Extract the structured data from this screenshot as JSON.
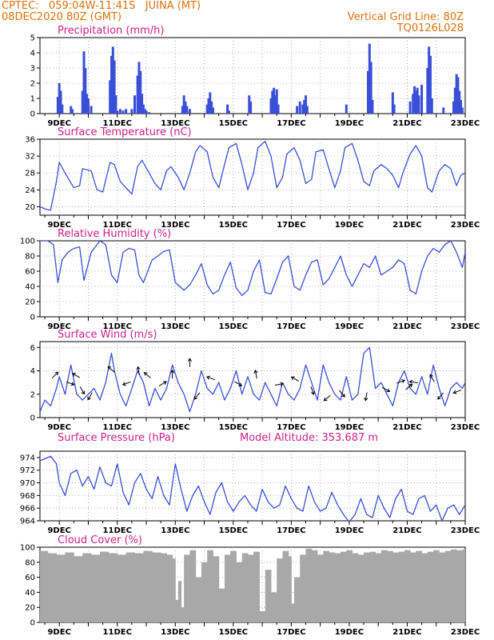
{
  "header": {
    "station_line": "CPTEC:   059:04W-11:41S   JUINA (MT)",
    "date_line": "08DEC2020 80Z (GMT)",
    "grid_line": "Vertical Grid Line: 80Z",
    "run_id": "TQ0126L028"
  },
  "colors": {
    "header": "#e07010",
    "panel_title": "#d0208a",
    "series": "#3a4fd8",
    "cloud": "#a8a8a8",
    "grid": "#9a9a9a"
  },
  "x_axis_labels": [
    "9DEC",
    "11DEC",
    "13DEC",
    "15DEC",
    "17DEC",
    "19DEC",
    "21DEC",
    "23DEC"
  ],
  "chart_data": [
    {
      "id": "precip",
      "type": "bar",
      "title": "Precipitation (mm/h)",
      "ylim": [
        0,
        5
      ],
      "yticks": [
        0,
        1,
        2,
        3,
        4,
        5
      ],
      "x_range_days": [
        8.333,
        23.0
      ],
      "x": [
        8.95,
        9.0,
        9.05,
        9.1,
        9.4,
        9.45,
        9.8,
        9.85,
        9.9,
        9.95,
        10.0,
        10.1,
        10.75,
        10.8,
        10.85,
        10.9,
        10.95,
        11.0,
        11.1,
        11.2,
        11.3,
        11.5,
        11.6,
        11.7,
        11.75,
        11.8,
        11.85,
        11.9,
        11.95,
        12.0,
        12.1,
        13.25,
        13.3,
        13.35,
        13.4,
        13.5,
        14.1,
        14.15,
        14.2,
        14.25,
        14.3,
        14.8,
        14.85,
        15.55,
        15.6,
        16.3,
        16.35,
        16.4,
        16.45,
        16.5,
        16.55,
        17.2,
        17.3,
        17.4,
        17.45,
        17.5,
        17.55,
        18.9,
        19.65,
        19.7,
        19.75,
        19.8,
        20.5,
        20.55,
        21.1,
        21.2,
        21.25,
        21.3,
        21.35,
        21.4,
        21.5,
        21.7,
        21.75,
        21.8,
        21.85,
        22.25,
        22.6,
        22.65,
        22.7,
        22.75,
        22.8,
        22.85,
        22.9
      ],
      "values": [
        1.1,
        2.0,
        1.5,
        0.6,
        0.5,
        0.3,
        1.5,
        4.1,
        3.0,
        1.3,
        1.0,
        0.5,
        2.2,
        3.8,
        4.4,
        3.5,
        1.2,
        0.2,
        0.3,
        0.2,
        0.3,
        0.3,
        1.2,
        2.5,
        3.4,
        2.8,
        1.3,
        0.6,
        0.3,
        0.2,
        0.1,
        0.5,
        1.2,
        0.8,
        0.5,
        0.3,
        0.6,
        1.0,
        1.4,
        0.8,
        0.4,
        0.6,
        0.2,
        1.2,
        0.8,
        1.0,
        1.5,
        1.7,
        1.2,
        1.6,
        0.6,
        0.5,
        0.8,
        0.6,
        0.9,
        1.2,
        0.5,
        0.6,
        2.8,
        4.6,
        3.4,
        0.9,
        1.4,
        0.6,
        0.8,
        1.3,
        1.8,
        1.5,
        1.7,
        1.2,
        1.9,
        3.0,
        4.4,
        3.8,
        1.0,
        0.4,
        0.8,
        1.7,
        2.6,
        2.4,
        1.5,
        0.9,
        0.4
      ]
    },
    {
      "id": "temp",
      "type": "line",
      "title": "Surface Temperature (nC)",
      "ylim": [
        18,
        36
      ],
      "yticks": [
        20,
        24,
        28,
        32,
        36
      ],
      "x": [
        8.333,
        8.5,
        8.7,
        8.9,
        9.0,
        9.2,
        9.5,
        9.7,
        9.8,
        10.1,
        10.3,
        10.5,
        10.75,
        10.9,
        11.1,
        11.3,
        11.5,
        11.7,
        11.85,
        12.1,
        12.3,
        12.5,
        12.7,
        12.85,
        13.1,
        13.3,
        13.5,
        13.7,
        13.85,
        14.1,
        14.3,
        14.5,
        14.7,
        14.85,
        15.1,
        15.3,
        15.5,
        15.7,
        15.85,
        16.1,
        16.3,
        16.5,
        16.7,
        16.85,
        17.1,
        17.3,
        17.5,
        17.7,
        17.85,
        18.1,
        18.3,
        18.5,
        18.7,
        18.85,
        19.1,
        19.3,
        19.5,
        19.7,
        19.85,
        20.1,
        20.3,
        20.5,
        20.7,
        20.85,
        21.1,
        21.3,
        21.5,
        21.7,
        21.85,
        22.1,
        22.3,
        22.5,
        22.7,
        22.85,
        23.0
      ],
      "values": [
        20.0,
        19.5,
        19.2,
        26.0,
        30.5,
        28.0,
        24.5,
        25.0,
        29.0,
        28.5,
        24.0,
        23.5,
        30.5,
        30.0,
        26.0,
        24.5,
        23.0,
        29.5,
        31.0,
        28.0,
        25.5,
        24.0,
        28.5,
        29.5,
        27.0,
        24.0,
        28.0,
        33.0,
        34.5,
        33.0,
        27.0,
        24.5,
        30.0,
        34.0,
        35.0,
        30.0,
        24.0,
        28.0,
        34.0,
        35.5,
        32.0,
        24.5,
        27.0,
        32.5,
        34.0,
        31.0,
        25.5,
        26.5,
        33.0,
        33.5,
        29.0,
        24.5,
        28.5,
        34.0,
        35.0,
        31.0,
        26.0,
        25.0,
        28.5,
        30.0,
        29.0,
        27.5,
        24.5,
        28.0,
        32.5,
        34.5,
        32.0,
        24.5,
        23.5,
        28.5,
        30.0,
        29.0,
        25.0,
        27.5,
        28.0
      ]
    },
    {
      "id": "rh",
      "type": "line",
      "title": "Relative Humidity (%)",
      "ylim": [
        0,
        100
      ],
      "yticks": [
        0,
        20,
        40,
        60,
        80,
        100
      ],
      "x": [
        8.333,
        8.6,
        8.8,
        8.95,
        9.1,
        9.3,
        9.5,
        9.7,
        9.85,
        10.1,
        10.4,
        10.6,
        10.8,
        11.0,
        11.2,
        11.4,
        11.6,
        11.75,
        11.9,
        12.2,
        12.4,
        12.6,
        12.8,
        13.0,
        13.3,
        13.5,
        13.7,
        13.9,
        14.1,
        14.3,
        14.5,
        14.7,
        14.9,
        15.1,
        15.3,
        15.5,
        15.7,
        15.9,
        16.1,
        16.3,
        16.5,
        16.7,
        16.9,
        17.1,
        17.3,
        17.5,
        17.7,
        17.9,
        18.1,
        18.3,
        18.5,
        18.7,
        18.9,
        19.1,
        19.3,
        19.5,
        19.7,
        19.9,
        20.1,
        20.3,
        20.5,
        20.7,
        20.9,
        21.1,
        21.3,
        21.5,
        21.7,
        21.9,
        22.1,
        22.3,
        22.5,
        22.7,
        22.9,
        23.0
      ],
      "values": [
        100,
        100,
        95,
        45,
        75,
        85,
        90,
        92,
        48,
        85,
        100,
        95,
        55,
        45,
        85,
        90,
        88,
        55,
        45,
        75,
        80,
        86,
        88,
        45,
        35,
        42,
        55,
        70,
        42,
        30,
        35,
        55,
        72,
        38,
        28,
        35,
        60,
        75,
        32,
        30,
        50,
        72,
        80,
        40,
        35,
        55,
        72,
        75,
        42,
        50,
        65,
        80,
        55,
        40,
        55,
        70,
        65,
        80,
        55,
        60,
        65,
        75,
        70,
        35,
        30,
        60,
        80,
        90,
        85,
        95,
        100,
        85,
        65,
        85
      ]
    },
    {
      "id": "wind",
      "type": "line",
      "title": "Surface Wind (m/s)",
      "ylim": [
        0,
        6.5
      ],
      "yticks": [
        0,
        2,
        4,
        6
      ],
      "x": [
        8.333,
        8.5,
        8.7,
        8.9,
        9.0,
        9.2,
        9.4,
        9.6,
        9.8,
        10.0,
        10.2,
        10.4,
        10.6,
        10.8,
        10.9,
        11.1,
        11.3,
        11.5,
        11.7,
        11.9,
        12.1,
        12.3,
        12.5,
        12.7,
        12.9,
        13.1,
        13.3,
        13.5,
        13.7,
        13.9,
        14.1,
        14.3,
        14.5,
        14.7,
        14.9,
        15.1,
        15.3,
        15.5,
        15.7,
        15.9,
        16.1,
        16.3,
        16.5,
        16.7,
        16.9,
        17.1,
        17.3,
        17.5,
        17.7,
        17.9,
        18.1,
        18.3,
        18.5,
        18.7,
        18.9,
        19.1,
        19.3,
        19.5,
        19.7,
        19.9,
        20.1,
        20.3,
        20.5,
        20.7,
        20.9,
        21.1,
        21.3,
        21.5,
        21.7,
        21.9,
        22.1,
        22.3,
        22.5,
        22.7,
        22.9,
        23.0
      ],
      "values": [
        0.5,
        1.5,
        1.0,
        2.5,
        3.5,
        2.0,
        4.5,
        2.0,
        1.5,
        2.0,
        2.5,
        1.5,
        3.0,
        5.5,
        4.0,
        2.0,
        1.0,
        2.5,
        4.0,
        3.0,
        1.0,
        2.5,
        1.5,
        2.5,
        4.5,
        3.0,
        2.0,
        0.5,
        2.0,
        4.0,
        2.5,
        2.0,
        3.0,
        1.5,
        2.5,
        4.0,
        2.0,
        3.5,
        2.0,
        1.5,
        3.0,
        2.0,
        1.0,
        3.0,
        2.0,
        1.5,
        2.5,
        4.5,
        3.0,
        1.5,
        4.5,
        3.0,
        2.0,
        1.5,
        3.5,
        1.5,
        2.0,
        5.5,
        6.0,
        2.5,
        3.0,
        2.0,
        1.0,
        3.0,
        4.0,
        2.5,
        2.0,
        3.5,
        2.0,
        4.5,
        2.5,
        1.0,
        2.5,
        3.0,
        2.5,
        3.0
      ],
      "arrows": [
        {
          "x": 8.8,
          "y": 3.5,
          "dir": 45
        },
        {
          "x": 9.3,
          "y": 3.0,
          "dir": -20
        },
        {
          "x": 9.65,
          "y": 3.5,
          "dir": 150
        },
        {
          "x": 9.75,
          "y": 2.5,
          "dir": -60
        },
        {
          "x": 10.1,
          "y": 2.0,
          "dir": -120
        },
        {
          "x": 10.85,
          "y": 4.0,
          "dir": 140
        },
        {
          "x": 11.4,
          "y": 3.0,
          "dir": 200
        },
        {
          "x": 11.75,
          "y": 3.8,
          "dir": 100
        },
        {
          "x": 12.1,
          "y": 3.5,
          "dir": 140
        },
        {
          "x": 12.5,
          "y": 2.8,
          "dir": 30
        },
        {
          "x": 12.9,
          "y": 3.5,
          "dir": 90
        },
        {
          "x": 13.5,
          "y": 4.5,
          "dir": 90
        },
        {
          "x": 13.8,
          "y": 2.0,
          "dir": 230
        },
        {
          "x": 14.3,
          "y": 3.3,
          "dir": 160
        },
        {
          "x": 15.1,
          "y": 3.0,
          "dir": -30
        },
        {
          "x": 15.8,
          "y": 3.5,
          "dir": 100
        },
        {
          "x": 16.5,
          "y": 2.8,
          "dir": 10
        },
        {
          "x": 17.2,
          "y": 3.2,
          "dir": 150
        },
        {
          "x": 17.7,
          "y": 2.5,
          "dir": -70
        },
        {
          "x": 18.3,
          "y": 1.8,
          "dir": 220
        },
        {
          "x": 18.7,
          "y": 2.2,
          "dir": -50
        },
        {
          "x": 19.6,
          "y": 2.0,
          "dir": -100
        },
        {
          "x": 20.2,
          "y": 2.5,
          "dir": -30
        },
        {
          "x": 20.7,
          "y": 3.0,
          "dir": 20
        },
        {
          "x": 21.0,
          "y": 2.5,
          "dir": 40
        },
        {
          "x": 21.3,
          "y": 3.0,
          "dir": 170
        },
        {
          "x": 21.9,
          "y": 3.2,
          "dir": 120
        },
        {
          "x": 22.2,
          "y": 2.0,
          "dir": 230
        },
        {
          "x": 22.8,
          "y": 2.3,
          "dir": 200
        }
      ]
    },
    {
      "id": "pres",
      "type": "line",
      "title": "Surface Pressure (hPa)",
      "annotation": "Model Altitude: 353.687  m",
      "ylim": [
        964,
        975
      ],
      "yticks": [
        964,
        966,
        968,
        970,
        972,
        974
      ],
      "x": [
        8.333,
        8.5,
        8.7,
        8.9,
        9.0,
        9.2,
        9.4,
        9.6,
        9.8,
        10.0,
        10.2,
        10.4,
        10.6,
        10.8,
        11.0,
        11.2,
        11.4,
        11.6,
        11.8,
        12.0,
        12.2,
        12.4,
        12.6,
        12.8,
        13.0,
        13.2,
        13.4,
        13.6,
        13.8,
        14.0,
        14.2,
        14.4,
        14.6,
        14.8,
        15.0,
        15.2,
        15.4,
        15.6,
        15.8,
        16.0,
        16.2,
        16.4,
        16.6,
        16.8,
        17.0,
        17.2,
        17.4,
        17.6,
        17.8,
        18.0,
        18.2,
        18.4,
        18.6,
        18.8,
        19.0,
        19.2,
        19.4,
        19.6,
        19.8,
        20.0,
        20.2,
        20.4,
        20.6,
        20.8,
        21.0,
        21.2,
        21.4,
        21.6,
        21.8,
        22.0,
        22.2,
        22.4,
        22.6,
        22.8,
        23.0
      ],
      "values": [
        973.5,
        973.8,
        974.2,
        973.0,
        970.0,
        968.0,
        971.5,
        972.0,
        969.5,
        971.0,
        969.0,
        972.5,
        970.0,
        969.5,
        973.0,
        968.5,
        966.5,
        970.0,
        971.5,
        969.0,
        967.5,
        971.0,
        968.0,
        966.5,
        973.0,
        969.0,
        965.5,
        968.0,
        969.5,
        967.0,
        965.0,
        968.5,
        970.0,
        967.0,
        965.5,
        967.0,
        968.0,
        966.5,
        965.5,
        969.0,
        967.0,
        966.0,
        966.5,
        969.5,
        967.5,
        966.0,
        965.5,
        969.5,
        967.0,
        965.5,
        966.0,
        968.5,
        966.5,
        965.0,
        963.8,
        965.0,
        967.5,
        965.0,
        964.5,
        968.0,
        966.0,
        964.5,
        967.5,
        969.0,
        965.5,
        965.0,
        967.5,
        968.0,
        965.5,
        966.5,
        964.0,
        966.0,
        966.5,
        965.0,
        966.5
      ]
    },
    {
      "id": "cloud",
      "type": "bar",
      "title": "Cloud Cover (%)",
      "ylim": [
        0,
        100
      ],
      "yticks": [
        0,
        20,
        40,
        60,
        80,
        100
      ],
      "x": [
        8.333,
        8.6,
        8.9,
        9.2,
        9.5,
        9.8,
        10.1,
        10.4,
        10.7,
        11.0,
        11.3,
        11.6,
        11.9,
        12.2,
        12.5,
        12.7,
        12.9,
        13.0,
        13.1,
        13.2,
        13.3,
        13.5,
        13.7,
        13.9,
        14.1,
        14.3,
        14.5,
        14.7,
        14.9,
        15.1,
        15.3,
        15.5,
        15.7,
        15.9,
        16.1,
        16.3,
        16.5,
        16.7,
        16.9,
        17.0,
        17.1,
        17.3,
        17.5,
        17.7,
        17.9,
        18.1,
        18.3,
        18.5,
        18.7,
        18.9,
        19.1,
        19.3,
        19.5,
        19.7,
        19.9,
        20.1,
        20.3,
        20.5,
        20.7,
        20.9,
        21.1,
        21.3,
        21.5,
        21.7,
        21.9,
        22.1,
        22.3,
        22.5,
        22.7,
        22.9
      ],
      "values": [
        95,
        92,
        90,
        93,
        88,
        92,
        90,
        94,
        92,
        90,
        93,
        92,
        95,
        93,
        92,
        90,
        85,
        30,
        55,
        20,
        90,
        96,
        60,
        80,
        96,
        88,
        45,
        90,
        95,
        80,
        92,
        90,
        94,
        15,
        70,
        40,
        85,
        95,
        88,
        25,
        60,
        90,
        98,
        96,
        90,
        95,
        93,
        92,
        94,
        96,
        92,
        90,
        93,
        94,
        92,
        96,
        95,
        93,
        94,
        96,
        93,
        95,
        92,
        94,
        96,
        93,
        95,
        97,
        96,
        97
      ]
    }
  ]
}
